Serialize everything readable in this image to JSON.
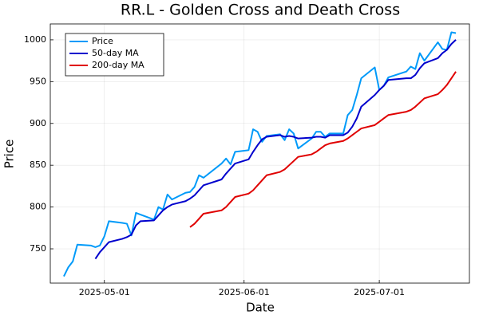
{
  "chart_data": {
    "type": "line",
    "title": "RR.L - Golden Cross and Death Cross",
    "x_label": "Date",
    "y_label": "Price",
    "x": [
      "2025-04-22",
      "2025-04-23",
      "2025-04-24",
      "2025-04-25",
      "2025-04-28",
      "2025-04-29",
      "2025-04-30",
      "2025-05-01",
      "2025-05-02",
      "2025-05-05",
      "2025-05-06",
      "2025-05-07",
      "2025-05-08",
      "2025-05-09",
      "2025-05-12",
      "2025-05-13",
      "2025-05-14",
      "2025-05-15",
      "2025-05-16",
      "2025-05-19",
      "2025-05-20",
      "2025-05-21",
      "2025-05-22",
      "2025-05-23",
      "2025-05-27",
      "2025-05-28",
      "2025-05-29",
      "2025-05-30",
      "2025-06-02",
      "2025-06-03",
      "2025-06-04",
      "2025-06-05",
      "2025-06-06",
      "2025-06-09",
      "2025-06-10",
      "2025-06-11",
      "2025-06-12",
      "2025-06-13",
      "2025-06-16",
      "2025-06-17",
      "2025-06-18",
      "2025-06-19",
      "2025-06-20",
      "2025-06-23",
      "2025-06-24",
      "2025-06-25",
      "2025-06-26",
      "2025-06-27",
      "2025-06-30",
      "2025-07-01",
      "2025-07-02",
      "2025-07-03",
      "2025-07-07",
      "2025-07-08",
      "2025-07-09",
      "2025-07-10",
      "2025-07-11",
      "2025-07-14",
      "2025-07-15",
      "2025-07-16",
      "2025-07-17",
      "2025-07-18"
    ],
    "series": [
      {
        "name": "Price",
        "color": "#009af9",
        "values": [
          717,
          728,
          735,
          755,
          754,
          752,
          754,
          765,
          783,
          781,
          780,
          766,
          793,
          791,
          785,
          800,
          797,
          815,
          809,
          817,
          818,
          824,
          838,
          835,
          852,
          858,
          851,
          866,
          868,
          893,
          890,
          878,
          885,
          887,
          880,
          893,
          888,
          870,
          882,
          890,
          890,
          884,
          888,
          888,
          910,
          916,
          934,
          954,
          967,
          940,
          945,
          955,
          962,
          968,
          965,
          984,
          975,
          997,
          989,
          988,
          1009,
          1008
        ]
      },
      {
        "name": "50-day MA",
        "color": "#0000cd",
        "values": [
          null,
          null,
          null,
          null,
          null,
          738,
          746,
          752,
          758,
          762,
          764,
          767,
          778,
          783,
          784,
          790,
          796,
          800,
          803,
          807,
          810,
          814,
          820,
          826,
          833,
          840,
          846,
          852,
          857,
          866,
          874,
          881,
          884,
          886,
          884,
          885,
          884,
          882,
          883,
          884,
          884,
          883,
          886,
          886,
          889,
          896,
          906,
          920,
          934,
          940,
          945,
          952,
          954,
          954,
          958,
          966,
          972,
          978,
          984,
          988,
          995,
          1000
        ]
      },
      {
        "name": "200-day MA",
        "color": "#e00000",
        "values": [
          null,
          null,
          null,
          null,
          null,
          null,
          null,
          null,
          null,
          null,
          null,
          null,
          null,
          null,
          null,
          null,
          null,
          null,
          null,
          null,
          776,
          780,
          786,
          792,
          796,
          800,
          806,
          812,
          816,
          820,
          826,
          832,
          838,
          842,
          845,
          850,
          855,
          860,
          863,
          866,
          870,
          874,
          876,
          879,
          882,
          886,
          890,
          894,
          898,
          902,
          906,
          910,
          914,
          916,
          920,
          925,
          930,
          935,
          940,
          946,
          954,
          962
        ]
      }
    ],
    "xlim": [
      "2025-04-19",
      "2025-07-21"
    ],
    "xticks": [
      "2025-05-01",
      "2025-06-01",
      "2025-07-01"
    ],
    "ylim": [
      709,
      1019
    ],
    "yticks": [
      750,
      800,
      850,
      900,
      950,
      1000
    ],
    "grid": true,
    "legend": "top-left"
  }
}
